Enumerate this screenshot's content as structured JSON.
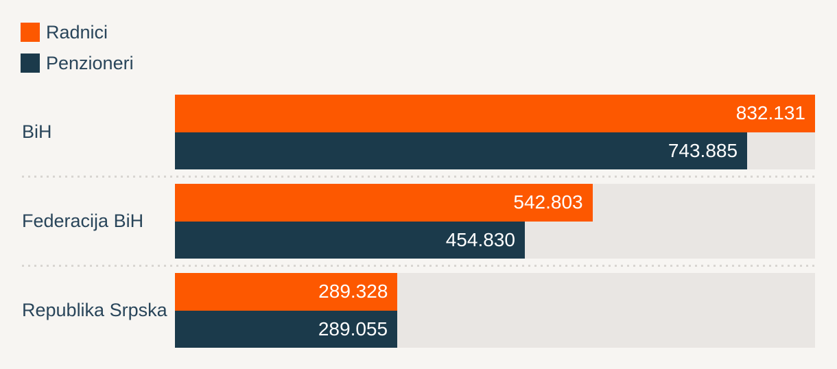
{
  "colors": {
    "radnici": "#FD5800",
    "penzioneri": "#1B3A4B",
    "background": "#F7F5F2",
    "bar_track": "#E9E6E3",
    "label_text": "#29455A",
    "value_text": "#FFFFFF",
    "separator_dot": "#D8D5D1"
  },
  "legend": {
    "items": [
      {
        "label": "Radnici",
        "color": "#FD5800"
      },
      {
        "label": "Penzioneri",
        "color": "#1B3A4B"
      }
    ]
  },
  "chart_data": {
    "type": "bar",
    "orientation": "horizontal",
    "title": "",
    "xlabel": "",
    "ylabel": "",
    "grid": false,
    "legend_position": "top-left",
    "xlim": [
      0,
      832131
    ],
    "categories": [
      "BiH",
      "Federacija BiH",
      "Republika Srpska"
    ],
    "series": [
      {
        "name": "Radnici",
        "color": "#FD5800",
        "values": [
          832131,
          542803,
          289328
        ],
        "labels": [
          "832.131",
          "542.803",
          "289.328"
        ]
      },
      {
        "name": "Penzioneri",
        "color": "#1B3A4B",
        "values": [
          743885,
          454830,
          289055
        ],
        "labels": [
          "743.885",
          "454.830",
          "289.055"
        ]
      }
    ]
  }
}
